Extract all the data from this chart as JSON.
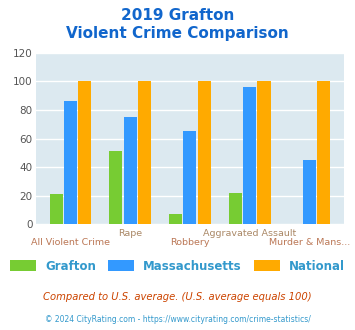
{
  "title_line1": "2019 Grafton",
  "title_line2": "Violent Crime Comparison",
  "categories": [
    "All Violent Crime",
    "Rape",
    "Robbery",
    "Aggravated Assault",
    "Murder & Mans..."
  ],
  "grafton": [
    21,
    51,
    7,
    22,
    0
  ],
  "massachusetts": [
    86,
    75,
    65,
    96,
    45
  ],
  "national": [
    100,
    100,
    100,
    100,
    100
  ],
  "grafton_color": "#77cc33",
  "massachusetts_color": "#3399ff",
  "national_color": "#ffaa00",
  "ylim": [
    0,
    120
  ],
  "yticks": [
    0,
    20,
    40,
    60,
    80,
    100,
    120
  ],
  "plot_bg": "#dce9f0",
  "title_color": "#1166cc",
  "label_upper_color": "#aa8866",
  "label_lower_color": "#bb7755",
  "legend_label_color": "#3399cc",
  "footer_text": "Compared to U.S. average. (U.S. average equals 100)",
  "footer_color": "#cc4400",
  "copyright_text": "© 2024 CityRating.com - https://www.cityrating.com/crime-statistics/",
  "copyright_color": "#3399cc",
  "legend_labels": [
    "Grafton",
    "Massachusetts",
    "National"
  ],
  "grid_color": "#ffffff",
  "bar_width": 0.22,
  "bar_gap": 0.02
}
